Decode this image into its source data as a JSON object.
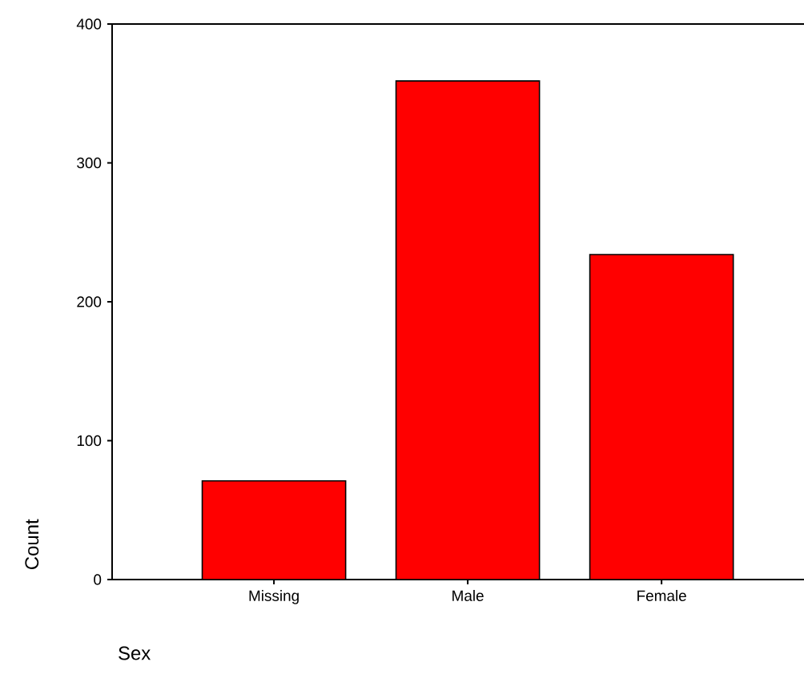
{
  "chart_data": {
    "type": "bar",
    "xlabel": "Sex",
    "ylabel": "Count",
    "categories": [
      "Missing",
      "Male",
      "Female"
    ],
    "values": [
      71,
      359,
      234
    ],
    "color": "#ff0000",
    "ylim": [
      0,
      400
    ],
    "yticks": [
      0,
      100,
      200,
      300,
      400
    ],
    "grid": false
  }
}
